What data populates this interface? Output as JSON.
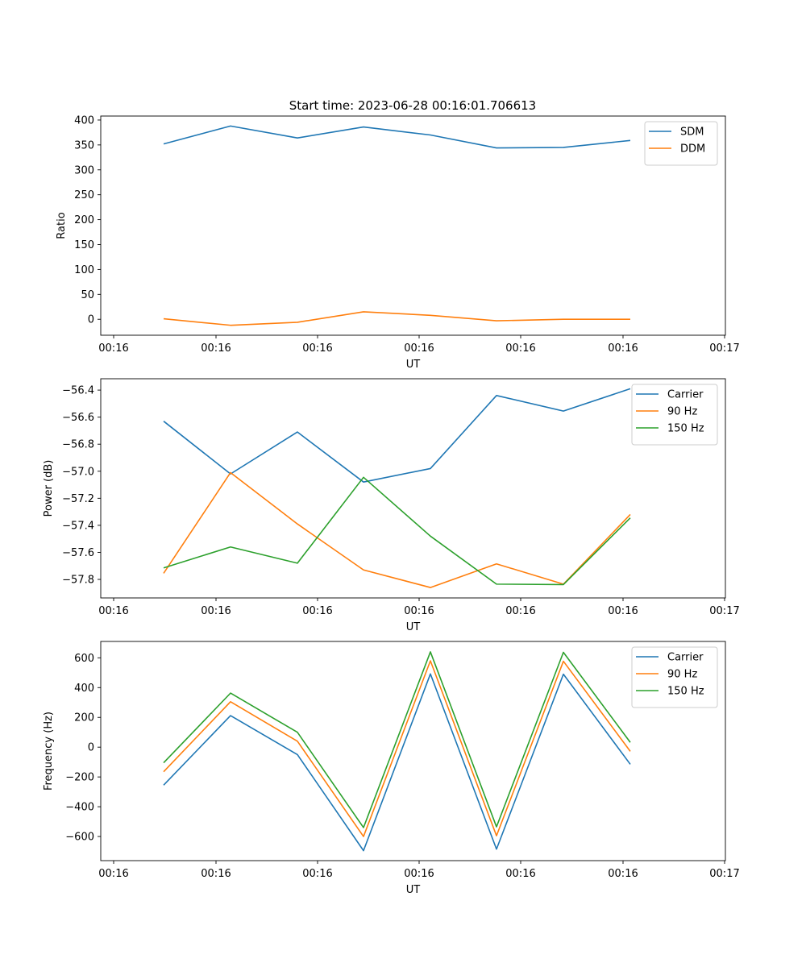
{
  "title": "Start time: 2023-06-28 00:16:01.706613",
  "chart_data": [
    {
      "type": "line",
      "xlabel": "UT",
      "ylabel": "Ratio",
      "x_tick_labels": [
        "00:16",
        "00:16",
        "00:16",
        "00:16",
        "00:16",
        "00:16",
        "00:17"
      ],
      "ylim": [
        -32,
        408
      ],
      "yticks": [
        0,
        50,
        100,
        150,
        200,
        250,
        300,
        350,
        400
      ],
      "legend_position": "top-right",
      "series": [
        {
          "name": "SDM",
          "color": "#1f77b4",
          "values": [
            352,
            388,
            364,
            386,
            370,
            344,
            345,
            359
          ]
        },
        {
          "name": "DDM",
          "color": "#ff7f0e",
          "values": [
            1,
            -12,
            -6,
            15,
            8,
            -3,
            0,
            0
          ]
        }
      ]
    },
    {
      "type": "line",
      "xlabel": "UT",
      "ylabel": "Power (dB)",
      "x_tick_labels": [
        "00:16",
        "00:16",
        "00:16",
        "00:16",
        "00:16",
        "00:16",
        "00:17"
      ],
      "ylim": [
        -57.937,
        -56.316
      ],
      "yticks": [
        -57.8,
        -57.6,
        -57.4,
        -57.2,
        -57.0,
        -56.8,
        -56.6,
        -56.4
      ],
      "ytick_labels": [
        "−57.8",
        "−57.6",
        "−57.4",
        "−57.2",
        "−57.0",
        "−56.8",
        "−56.6",
        "−56.4"
      ],
      "legend_position": "top-right",
      "series": [
        {
          "name": "Carrier",
          "color": "#1f77b4",
          "values": [
            -56.63,
            -57.02,
            -56.71,
            -57.08,
            -56.98,
            -56.44,
            -56.555,
            -56.39
          ]
        },
        {
          "name": "90 Hz",
          "color": "#ff7f0e",
          "values": [
            -57.755,
            -57.01,
            -57.39,
            -57.73,
            -57.86,
            -57.685,
            -57.835,
            -57.32
          ]
        },
        {
          "name": "150 Hz",
          "color": "#2ca02c",
          "values": [
            -57.715,
            -57.56,
            -57.68,
            -57.045,
            -57.48,
            -57.835,
            -57.838,
            -57.345
          ]
        }
      ]
    },
    {
      "type": "line",
      "xlabel": "UT",
      "ylabel": "Frequency (Hz)",
      "x_tick_labels": [
        "00:16",
        "00:16",
        "00:16",
        "00:16",
        "00:16",
        "00:16",
        "00:17"
      ],
      "ylim": [
        -762,
        710
      ],
      "yticks": [
        -600,
        -400,
        -200,
        0,
        200,
        400,
        600
      ],
      "ytick_labels": [
        "−600",
        "−400",
        "−200",
        "0",
        "200",
        "400",
        "600"
      ],
      "legend_position": "top-right",
      "series": [
        {
          "name": "Carrier",
          "color": "#1f77b4",
          "values": [
            -255,
            212,
            -50,
            -695,
            492,
            -685,
            490,
            -115
          ]
        },
        {
          "name": "90 Hz",
          "color": "#ff7f0e",
          "values": [
            -165,
            305,
            40,
            -600,
            580,
            -595,
            577,
            -28
          ]
        },
        {
          "name": "150 Hz",
          "color": "#2ca02c",
          "values": [
            -105,
            363,
            100,
            -540,
            640,
            -535,
            637,
            32
          ]
        }
      ]
    }
  ]
}
